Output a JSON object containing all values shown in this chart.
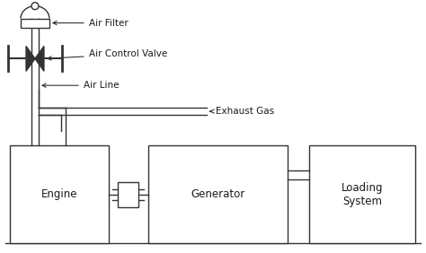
{
  "bg_color": "#ffffff",
  "line_color": "#333333",
  "text_color": "#1a1a1a",
  "labels": {
    "air_filter": "Air Filter",
    "air_control_valve": "Air Control Valve",
    "air_line": "Air Line",
    "exhaust_gas": "Exhaust Gas",
    "engine": "Engine",
    "generator": "Generator",
    "loading_system": "Loading\nSystem"
  },
  "font_size": 7.5,
  "fig_width": 4.74,
  "fig_height": 2.82,
  "dpi": 100
}
